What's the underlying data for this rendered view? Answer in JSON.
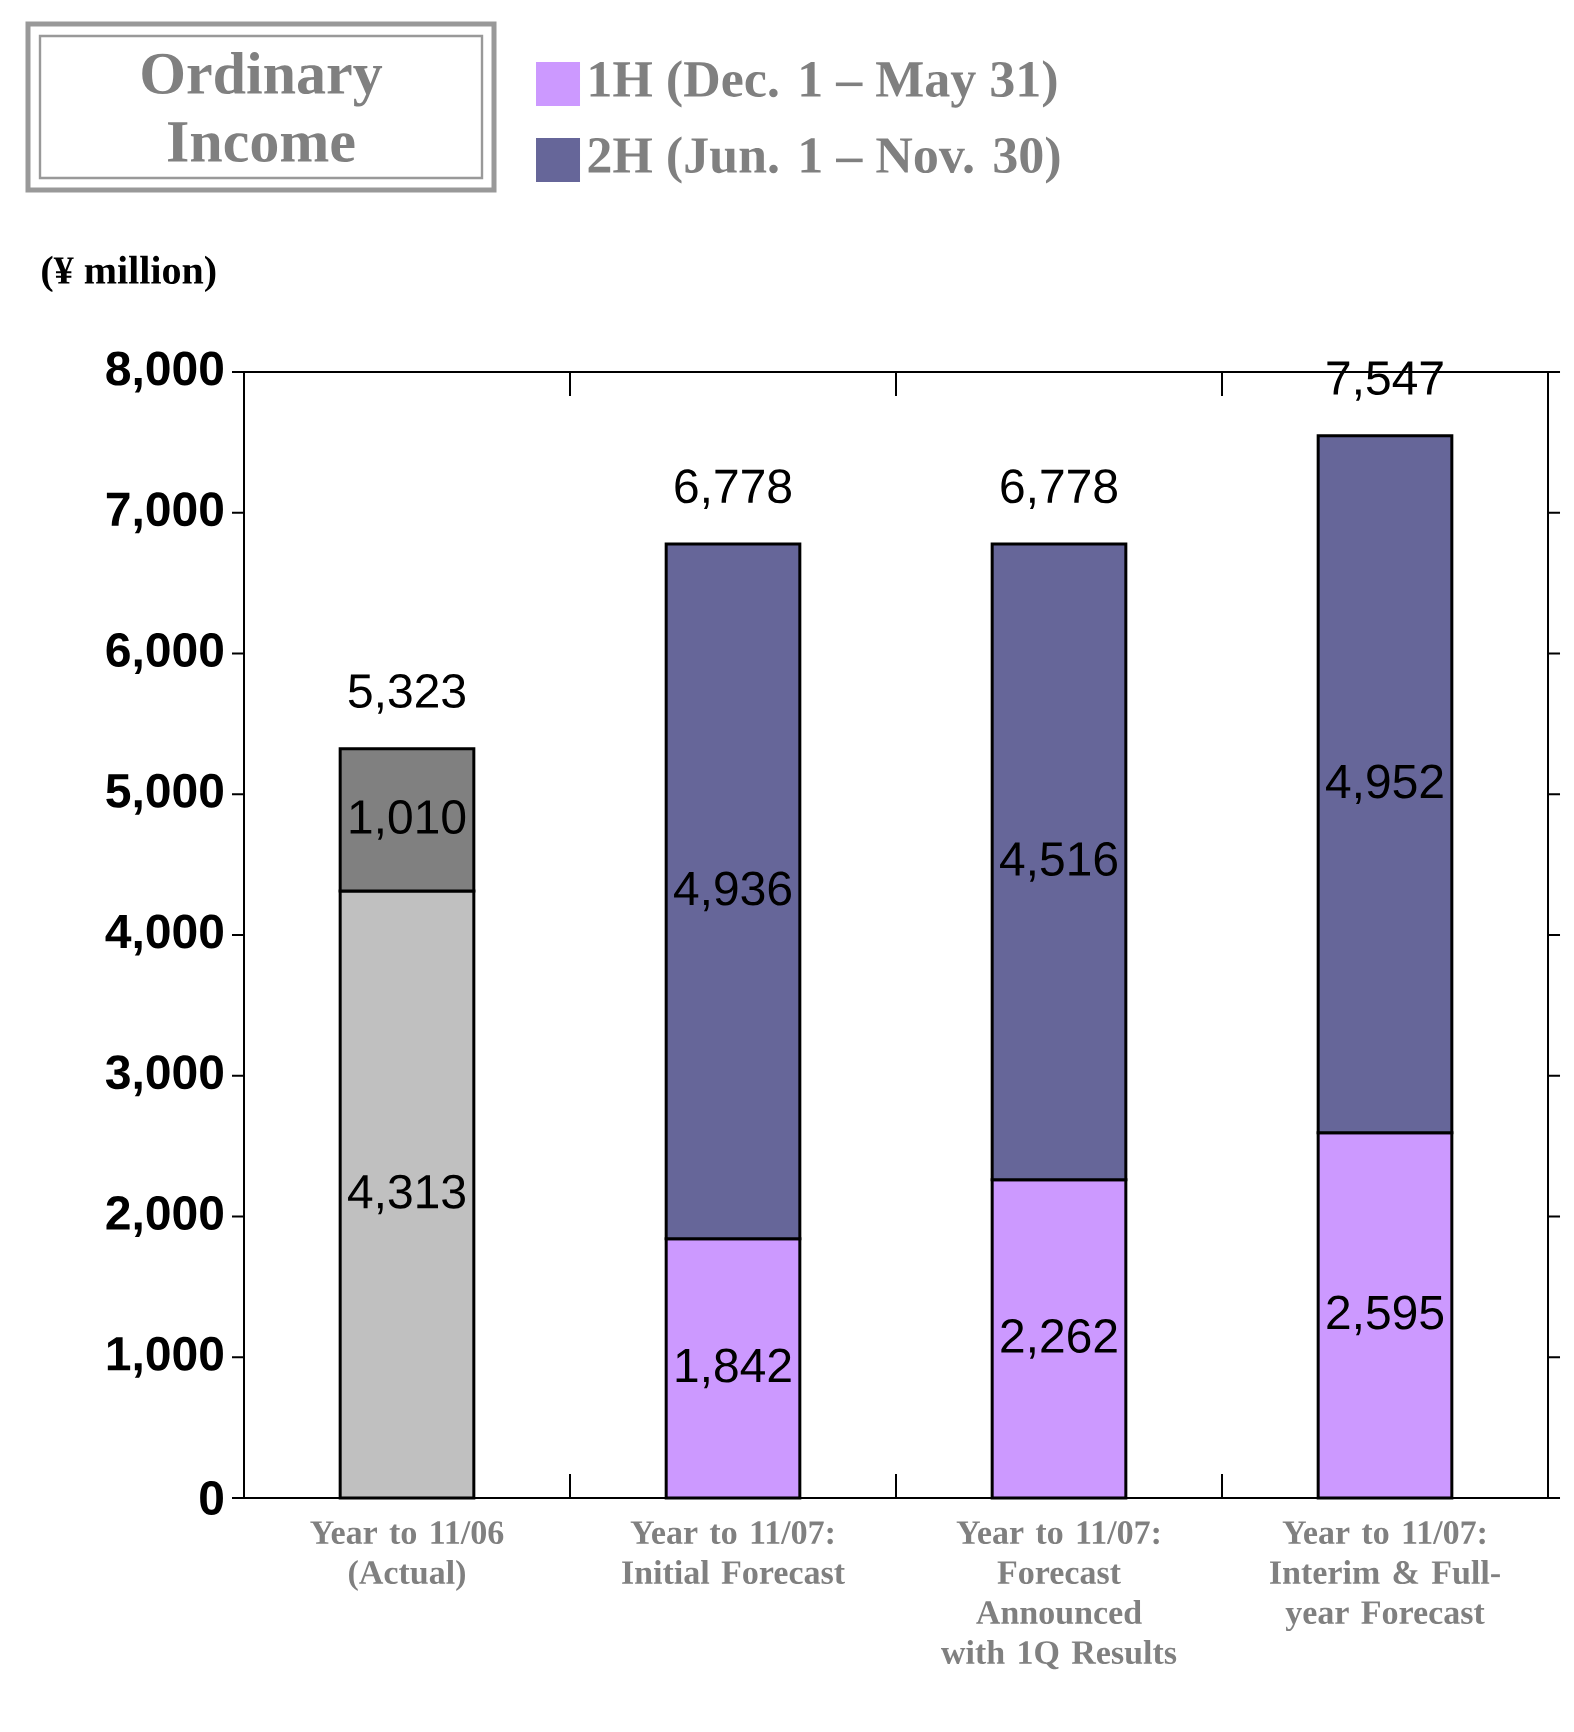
{
  "chart_data": {
    "type": "bar",
    "title": "Ordinary Income",
    "ylabel": "(¥ million)",
    "stacked": true,
    "legend": "top",
    "categories": [
      "Year to 11/06 (Actual)",
      "Year to 11/07: Initial Forecast",
      "Year to 11/07: Forecast Announced with 1Q Results",
      "Year to 11/07: Interim & Full-year Forecast"
    ],
    "series": [
      {
        "name": "1H (Dec. 1 – May 31)",
        "color": "#cc99ff",
        "colors": [
          "#c0c0c0",
          "#cc99ff",
          "#cc99ff",
          "#cc99ff"
        ],
        "values": [
          4313,
          1842,
          2262,
          2595
        ],
        "value_labels": [
          "4,313",
          "1,842",
          "2,262",
          "2,595"
        ]
      },
      {
        "name": "2H (Jun. 1 – Nov. 30)",
        "color": "#666699",
        "colors": [
          "#808080",
          "#666699",
          "#666699",
          "#666699"
        ],
        "values": [
          1010,
          4936,
          4516,
          4952
        ],
        "value_labels": [
          "1,010",
          "4,936",
          "4,516",
          "4,952"
        ]
      }
    ],
    "totals": [
      "5,323",
      "6,778",
      "6,778",
      "7,547"
    ],
    "ylim": [
      0,
      8000
    ],
    "yticks": [
      0,
      {
        "value": 1000,
        "label": "1,000"
      },
      {
        "value": 2000,
        "label": "2,000"
      },
      {
        "value": 3000,
        "label": "3,000"
      },
      {
        "value": 4000,
        "label": "4,000"
      },
      {
        "value": 5000,
        "label": "5,000"
      },
      {
        "value": 6000,
        "label": "6,000"
      },
      {
        "value": 7000,
        "label": "7,000"
      },
      {
        "value": 8000,
        "label": "8,000"
      }
    ]
  }
}
